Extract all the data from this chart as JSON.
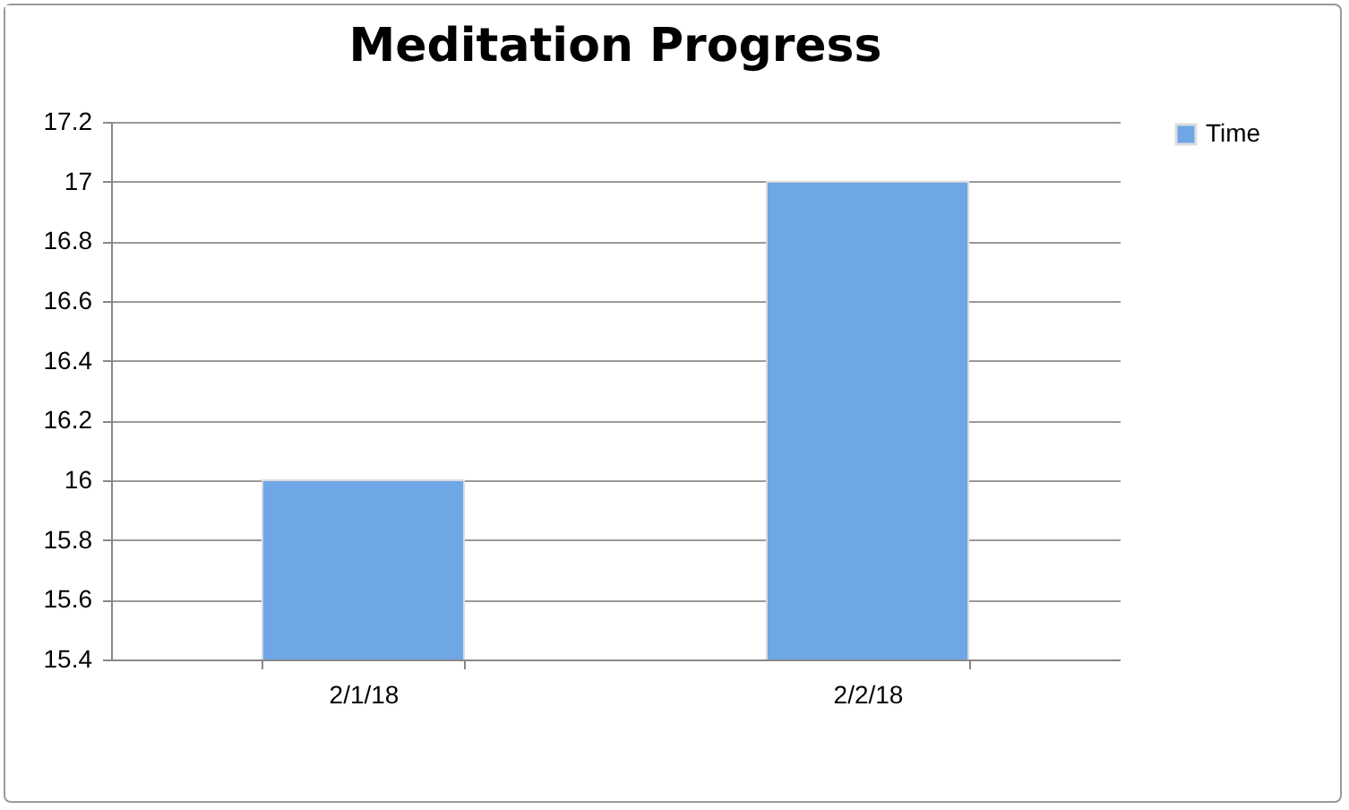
{
  "chart_data": {
    "type": "bar",
    "title": "Meditation Progress",
    "categories": [
      "2/1/18",
      "2/2/18"
    ],
    "series": [
      {
        "name": "Time",
        "color": "#6fa6e6",
        "values": [
          16,
          17
        ]
      }
    ],
    "ylim": [
      15.4,
      17.2
    ],
    "yticks": [
      15.4,
      15.6,
      15.8,
      16,
      16.2,
      16.4,
      16.6,
      16.8,
      17,
      17.2
    ],
    "grid": "y",
    "legend": "right"
  }
}
